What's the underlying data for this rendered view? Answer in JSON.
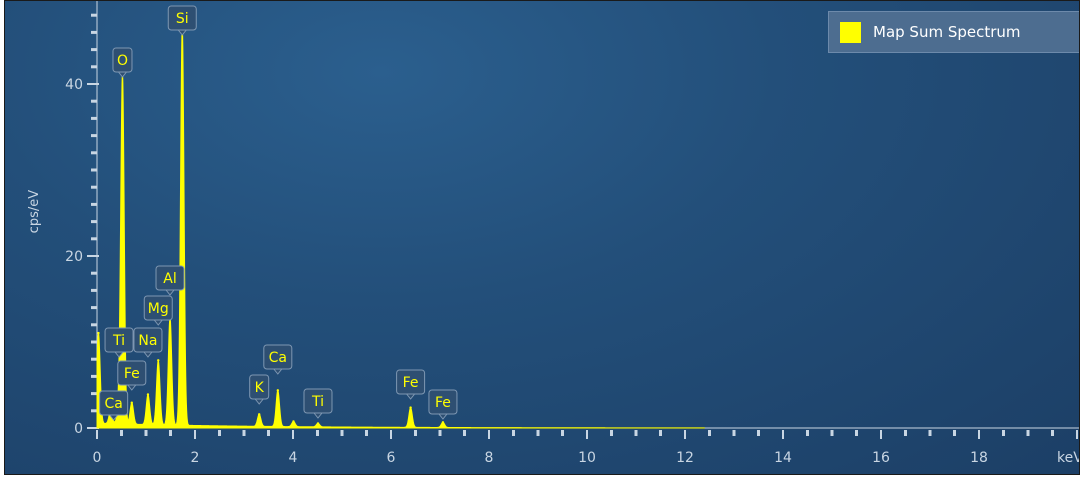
{
  "chart_data": {
    "type": "line",
    "title": "",
    "xlabel": "keV",
    "ylabel": "cps/eV",
    "xlim": [
      0,
      20
    ],
    "ylim": [
      0,
      48
    ],
    "x_ticks": [
      0,
      2,
      4,
      6,
      8,
      10,
      12,
      14,
      16,
      18
    ],
    "y_ticks": [
      0,
      20,
      40
    ],
    "grid": false,
    "legend_position": "top-right",
    "series": [
      {
        "name": "Map Sum Spectrum",
        "color": "#ffff00",
        "peaks": [
          {
            "x": 0.03,
            "y": 10.5
          },
          {
            "x": 0.28,
            "y": 1.5
          },
          {
            "x": 0.45,
            "y": 2.5
          },
          {
            "x": 0.52,
            "y": 40.5
          },
          {
            "x": 0.71,
            "y": 2.5
          },
          {
            "x": 1.04,
            "y": 3.5
          },
          {
            "x": 1.25,
            "y": 7.5
          },
          {
            "x": 1.49,
            "y": 12.5
          },
          {
            "x": 1.74,
            "y": 46.5
          },
          {
            "x": 3.31,
            "y": 1.4
          },
          {
            "x": 3.69,
            "y": 4.2
          },
          {
            "x": 4.01,
            "y": 0.6
          },
          {
            "x": 4.51,
            "y": 0.4
          },
          {
            "x": 6.4,
            "y": 2.3
          },
          {
            "x": 7.06,
            "y": 0.6
          }
        ]
      }
    ],
    "annotations": [
      {
        "text": "Si",
        "x": 1.74
      },
      {
        "text": "O",
        "x": 0.52
      },
      {
        "text": "Al",
        "x": 1.49
      },
      {
        "text": "Mg",
        "x": 1.25
      },
      {
        "text": "Ti",
        "x": 0.45
      },
      {
        "text": "Na",
        "x": 1.04
      },
      {
        "text": "Fe",
        "x": 0.71
      },
      {
        "text": "Ca",
        "x": 0.34
      },
      {
        "text": "K",
        "x": 3.31
      },
      {
        "text": "Ca",
        "x": 3.69
      },
      {
        "text": "Ti",
        "x": 4.51
      },
      {
        "text": "Fe",
        "x": 6.4
      },
      {
        "text": "Fe",
        "x": 7.06
      }
    ]
  },
  "legend": {
    "label": "Map Sum Spectrum",
    "color": "#ffff00"
  }
}
